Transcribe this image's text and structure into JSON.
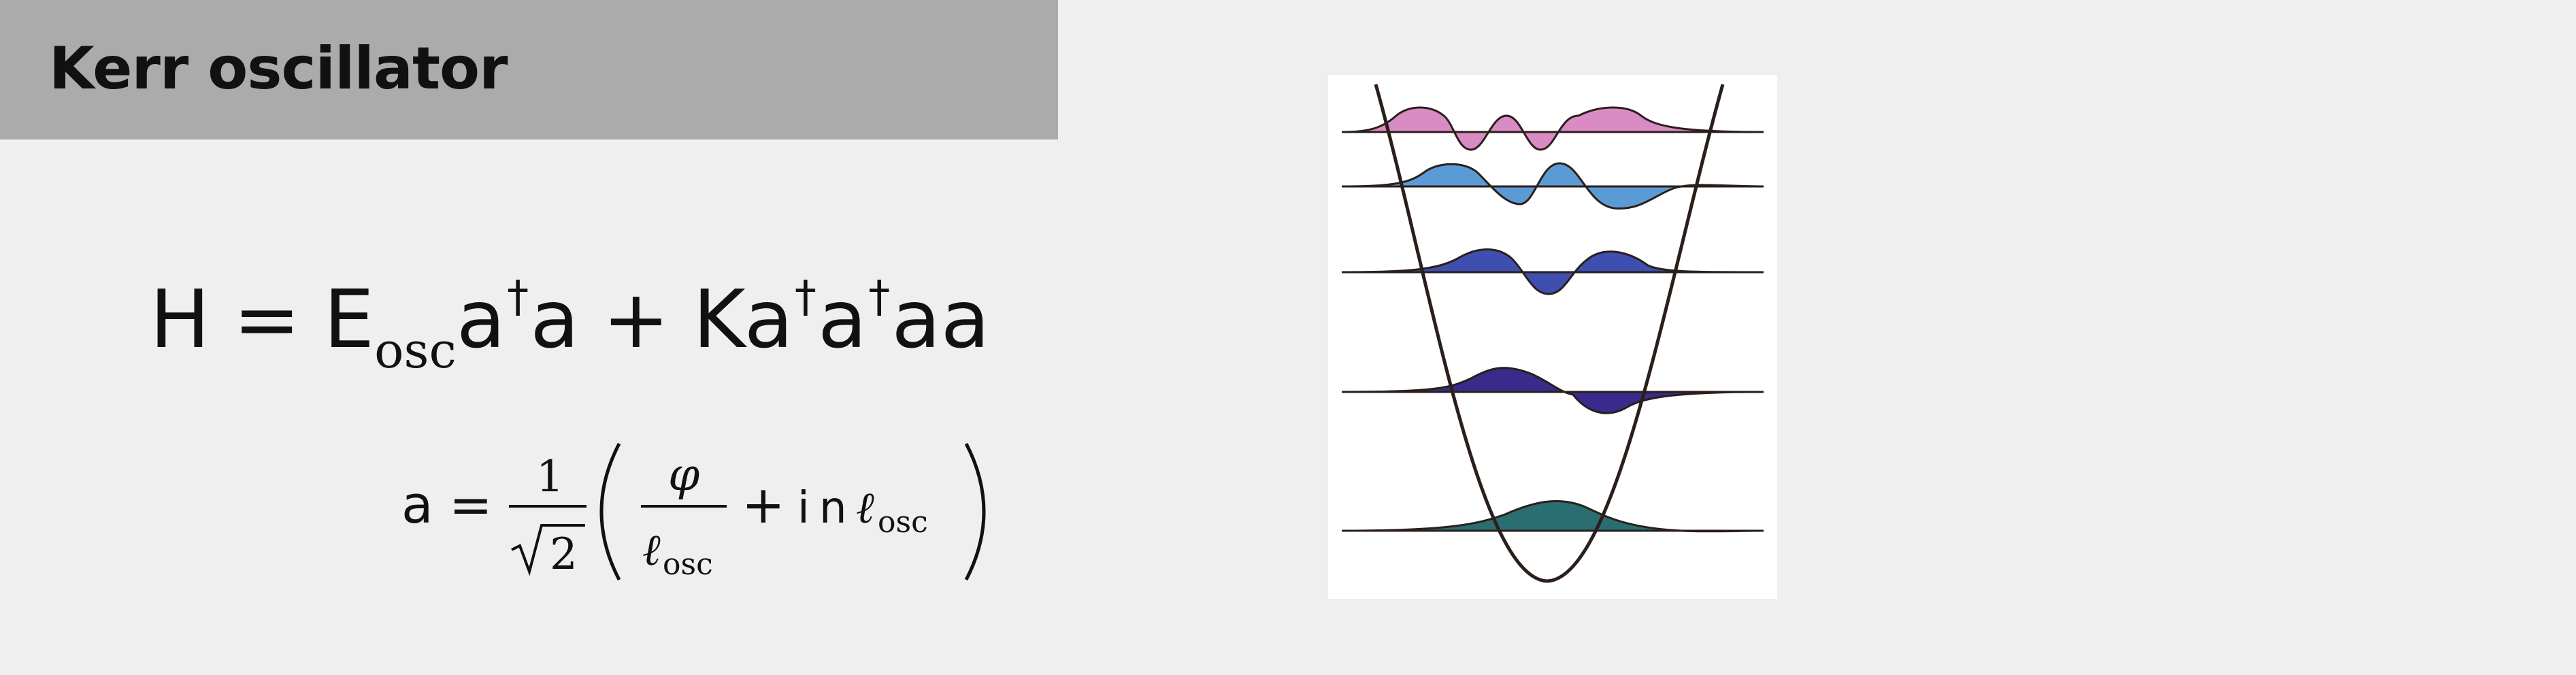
{
  "slide": {
    "title": "Kerr oscillator",
    "hamiltonian": {
      "lhs": "H",
      "equals": "=",
      "E": "E",
      "E_sub": "osc",
      "a1": "a",
      "dagger": "†",
      "a2": "a",
      "plus": "+",
      "K": "K",
      "a3": "a",
      "a4": "a",
      "aa": "aa"
    },
    "ladder_definition": {
      "lhs": "a",
      "equals": "=",
      "numerator": "1",
      "denominator_radicand": "2",
      "phi": "φ",
      "ell": "ℓ",
      "ell_sub": "osc",
      "plus": "+",
      "i": "i",
      "n": "n"
    },
    "figure": {
      "description_colors": {
        "level4": "#d98cc4",
        "level3": "#5b9bd5",
        "level2": "#3f4fb0",
        "level1": "#3a2a8c",
        "level0": "#2a6e72",
        "potential": "#2a1f1a"
      }
    }
  }
}
